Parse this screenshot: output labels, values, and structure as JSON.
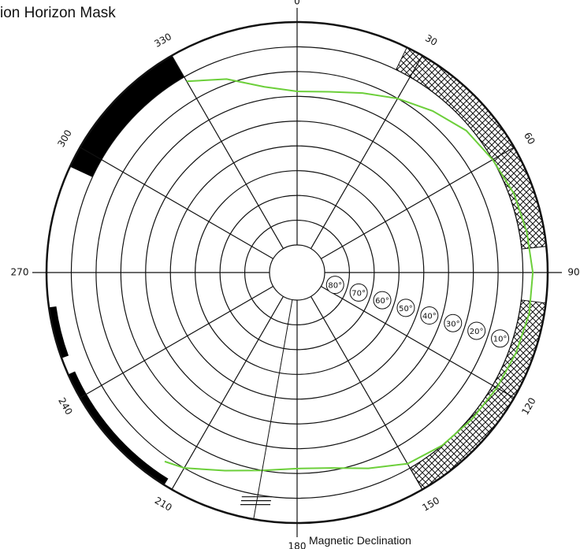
{
  "title": "ion Horizon Mask",
  "footer": "Magnetic Declination",
  "azimuth_labels": [
    {
      "angle": 0,
      "text": "0"
    },
    {
      "angle": 30,
      "text": "30"
    },
    {
      "angle": 60,
      "text": "60"
    },
    {
      "angle": 90,
      "text": "90"
    },
    {
      "angle": 120,
      "text": "120"
    },
    {
      "angle": 150,
      "text": "150"
    },
    {
      "angle": 180,
      "text": "180"
    },
    {
      "angle": 210,
      "text": "210"
    },
    {
      "angle": 240,
      "text": "240"
    },
    {
      "angle": 270,
      "text": "270"
    },
    {
      "angle": 300,
      "text": "300"
    },
    {
      "angle": 330,
      "text": "330"
    }
  ],
  "altitude_rings": [
    {
      "alt": 80,
      "text": "80°"
    },
    {
      "alt": 70,
      "text": "70°"
    },
    {
      "alt": 60,
      "text": "60°"
    },
    {
      "alt": 50,
      "text": "50°"
    },
    {
      "alt": 40,
      "text": "40°"
    },
    {
      "alt": 30,
      "text": "30°"
    },
    {
      "alt": 20,
      "text": "20°"
    },
    {
      "alt": 10,
      "text": "10°"
    }
  ],
  "colors": {
    "line": "#111111",
    "horizon": "#6ccf3a",
    "mask": "#000000"
  },
  "obstructions": {
    "solid": [
      {
        "az_start": 295,
        "az_end": 330,
        "alt_start": 0,
        "alt_end": 10
      },
      {
        "az_start": 250,
        "az_end": 262,
        "alt_start": 0,
        "alt_end": 3
      },
      {
        "az_start": 212,
        "az_end": 246,
        "alt_start": 0,
        "alt_end": 3
      }
    ],
    "hatched": [
      {
        "az_start": 26,
        "az_end": 84,
        "alt_start": 0,
        "alt_end": 10
      },
      {
        "az_start": 97,
        "az_end": 150,
        "alt_start": 0,
        "alt_end": 10
      }
    ]
  },
  "horizon_profile": [
    {
      "az": 330,
      "alt": 12
    },
    {
      "az": 340,
      "alt": 18
    },
    {
      "az": 350,
      "alt": 25
    },
    {
      "az": 0,
      "alt": 28
    },
    {
      "az": 10,
      "alt": 27
    },
    {
      "az": 20,
      "alt": 24
    },
    {
      "az": 30,
      "alt": 20
    },
    {
      "az": 40,
      "alt": 16
    },
    {
      "az": 50,
      "alt": 12
    },
    {
      "az": 60,
      "alt": 10
    },
    {
      "az": 70,
      "alt": 8
    },
    {
      "az": 80,
      "alt": 7
    },
    {
      "az": 90,
      "alt": 6
    },
    {
      "az": 100,
      "alt": 6
    },
    {
      "az": 110,
      "alt": 7
    },
    {
      "az": 120,
      "alt": 8
    },
    {
      "az": 130,
      "alt": 9
    },
    {
      "az": 140,
      "alt": 10
    },
    {
      "az": 150,
      "alt": 12
    },
    {
      "az": 160,
      "alt": 17
    },
    {
      "az": 170,
      "alt": 21
    },
    {
      "az": 180,
      "alt": 22
    },
    {
      "az": 190,
      "alt": 20
    },
    {
      "az": 200,
      "alt": 16
    },
    {
      "az": 210,
      "alt": 10
    },
    {
      "az": 215,
      "alt": 8
    }
  ]
}
